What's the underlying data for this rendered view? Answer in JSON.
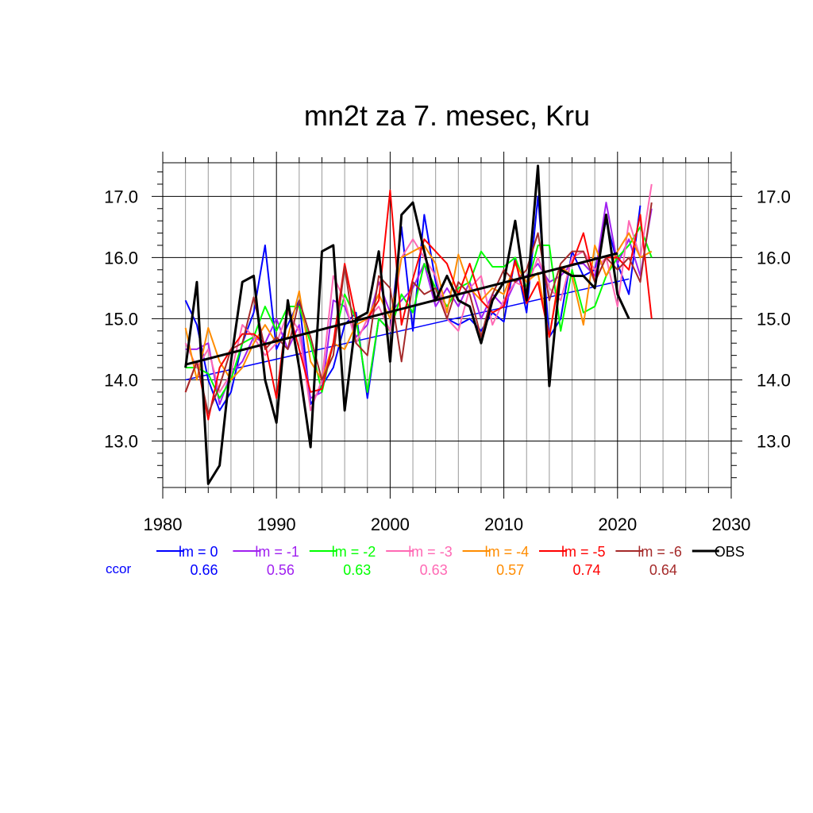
{
  "chart_data": {
    "type": "line",
    "title": "mn2t za 7. mesec, Kru",
    "xlim": [
      1980,
      2030
    ],
    "ylim": [
      12.24,
      17.55
    ],
    "x_ticks": [
      1980,
      1990,
      2000,
      2010,
      2020,
      2030
    ],
    "y_ticks": [
      13.0,
      14.0,
      15.0,
      16.0,
      17.0
    ],
    "x_tick_labels": [
      "1980",
      "1990",
      "2000",
      "2010",
      "2020",
      "2030"
    ],
    "y_tick_labels": [
      "13.0",
      "14.0",
      "15.0",
      "16.0",
      "17.0"
    ],
    "grid": true,
    "ccor_label": "ccor",
    "series": [
      {
        "name": "lm = 0",
        "color": "#0000ff",
        "ccor": "0.66",
        "x_start": 1982,
        "values": [
          15.3,
          14.9,
          14.0,
          13.5,
          13.8,
          14.6,
          15.1,
          16.2,
          14.5,
          14.9,
          15.3,
          13.6,
          13.9,
          14.2,
          14.9,
          15.1,
          13.7,
          15.0,
          14.8,
          16.5,
          14.8,
          16.7,
          15.6,
          15.0,
          14.9,
          15.0,
          14.8,
          15.1,
          14.95,
          16.0,
          15.1,
          17.0,
          14.7,
          15.0,
          16.1,
          15.7,
          15.8,
          16.6,
          15.9,
          15.4,
          16.85
        ],
        "trend": {
          "x": [
            1982,
            2021
          ],
          "y": [
            14.0,
            15.65
          ]
        }
      },
      {
        "name": "lm = -1",
        "color": "#a020f0",
        "ccor": "0.56",
        "x_start": 1982,
        "values": [
          14.5,
          14.5,
          14.6,
          13.6,
          14.1,
          14.3,
          14.7,
          14.6,
          15.0,
          14.5,
          14.9,
          13.7,
          13.8,
          15.3,
          15.2,
          14.7,
          14.9,
          15.6,
          15.1,
          15.3,
          15.5,
          15.9,
          15.2,
          15.5,
          15.2,
          15.6,
          15.0,
          15.4,
          15.2,
          15.6,
          15.7,
          15.9,
          15.6,
          15.7,
          15.9,
          15.9,
          15.7,
          16.9,
          15.9,
          16.3,
          15.7,
          16.8
        ]
      },
      {
        "name": "lm = -2",
        "color": "#00ff00",
        "ccor": "0.63",
        "x_start": 1982,
        "values": [
          14.2,
          14.2,
          14.1,
          13.7,
          14.0,
          14.6,
          14.7,
          15.2,
          14.8,
          15.2,
          15.2,
          14.6,
          13.8,
          14.6,
          15.4,
          15.0,
          13.8,
          15.0,
          14.8,
          15.4,
          15.1,
          15.9,
          15.5,
          15.2,
          15.5,
          15.6,
          16.1,
          15.85,
          15.85,
          16.0,
          15.5,
          16.2,
          16.2,
          14.8,
          15.8,
          15.1,
          15.2,
          15.7,
          16.0,
          16.2,
          16.5,
          16.0
        ]
      },
      {
        "name": "lm = -3",
        "color": "#ff69b4",
        "ccor": "0.63",
        "x_start": 1982,
        "values": [
          14.6,
          14.2,
          14.5,
          13.8,
          14.1,
          14.9,
          14.7,
          14.4,
          14.6,
          15.1,
          14.8,
          13.5,
          14.0,
          15.7,
          15.3,
          14.6,
          15.0,
          15.2,
          14.8,
          16.0,
          16.3,
          16.0,
          15.7,
          15.0,
          14.8,
          15.5,
          15.7,
          14.9,
          15.3,
          15.6,
          15.5,
          16.0,
          15.5,
          15.3,
          16.0,
          16.1,
          15.8,
          16.0,
          15.2,
          16.6,
          16.0,
          17.2
        ]
      },
      {
        "name": "lm = -4",
        "color": "#ff8c00",
        "ccor": "0.57",
        "x_start": 1982,
        "values": [
          14.85,
          14.0,
          14.85,
          14.3,
          14.0,
          14.2,
          14.6,
          14.9,
          14.6,
          14.7,
          15.45,
          14.3,
          14.0,
          14.6,
          14.5,
          14.9,
          15.0,
          15.4,
          15.0,
          16.0,
          16.1,
          16.2,
          15.9,
          15.1,
          16.05,
          15.5,
          15.3,
          15.5,
          15.4,
          15.9,
          15.6,
          15.75,
          14.7,
          15.85,
          15.7,
          14.9,
          16.2,
          15.7,
          16.1,
          16.4,
          16.0,
          16.1
        ]
      },
      {
        "name": "lm = -5",
        "color": "#ff0000",
        "ccor": "0.74",
        "x_start": 1982,
        "values": [
          13.8,
          14.3,
          13.35,
          14.2,
          14.5,
          14.75,
          14.75,
          14.6,
          13.7,
          15.2,
          14.5,
          13.8,
          13.85,
          14.6,
          15.9,
          15.0,
          15.0,
          15.3,
          17.1,
          14.9,
          15.65,
          16.3,
          16.1,
          15.9,
          15.4,
          15.9,
          15.3,
          15.1,
          15.2,
          15.95,
          15.25,
          15.6,
          14.7,
          15.8,
          15.9,
          16.4,
          15.6,
          16.0,
          16.0,
          15.8,
          16.7,
          15.0
        ]
      },
      {
        "name": "lm = -6",
        "color": "#a52a2a",
        "ccor": "0.64",
        "x_start": 1982,
        "values": [
          13.8,
          14.3,
          13.45,
          13.9,
          14.5,
          14.6,
          15.35,
          14.5,
          14.7,
          14.5,
          15.3,
          14.7,
          14.0,
          14.4,
          15.85,
          14.6,
          14.4,
          15.7,
          15.5,
          14.3,
          15.6,
          15.4,
          15.5,
          15.0,
          15.6,
          15.4,
          14.7,
          15.4,
          15.8,
          15.6,
          15.8,
          16.4,
          15.3,
          15.9,
          16.1,
          16.1,
          15.6,
          16.0,
          15.8,
          16.0,
          15.6,
          16.9
        ]
      },
      {
        "name": "OBS",
        "color": "#000000",
        "ccor": "",
        "x_start": 1982,
        "values": [
          14.2,
          15.6,
          12.3,
          12.6,
          14.3,
          15.6,
          15.7,
          14.0,
          13.3,
          15.3,
          14.2,
          12.9,
          16.1,
          16.2,
          13.5,
          15.0,
          15.1,
          16.1,
          14.3,
          16.7,
          16.9,
          16.1,
          15.3,
          15.7,
          15.3,
          15.2,
          14.6,
          15.3,
          15.6,
          16.6,
          15.3,
          17.5,
          13.9,
          15.8,
          15.7,
          15.7,
          15.5,
          16.7,
          15.4,
          15.0
        ],
        "trend": {
          "x": [
            1982,
            2020
          ],
          "y": [
            14.25,
            16.07
          ]
        }
      }
    ]
  }
}
